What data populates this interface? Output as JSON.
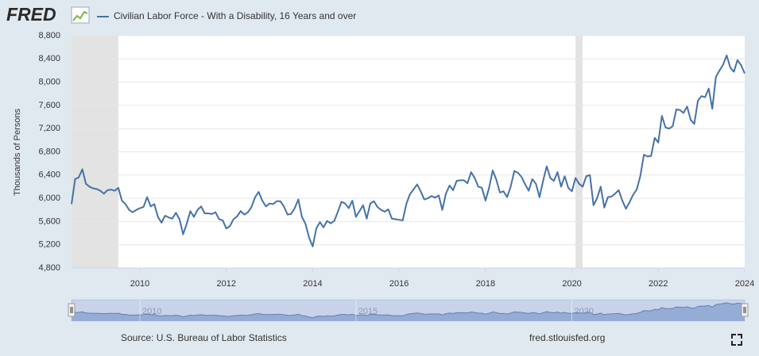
{
  "logo": "FRED",
  "chart_data": {
    "type": "line",
    "y_label": "Thousands of Persons",
    "source": "Source: U.S. Bureau of Labor Statistics",
    "site": "fred.stlouisfed.org",
    "series": [
      {
        "name": "Civilian Labor Force - With a Disability, 16 Years and over",
        "color": "#4572a7",
        "values": [
          5900,
          6330,
          6360,
          6500,
          6250,
          6200,
          6170,
          6160,
          6130,
          6080,
          6140,
          6150,
          6130,
          6180,
          5960,
          5900,
          5800,
          5760,
          5800,
          5830,
          5850,
          6020,
          5860,
          5900,
          5680,
          5580,
          5700,
          5670,
          5650,
          5750,
          5640,
          5380,
          5560,
          5780,
          5680,
          5800,
          5860,
          5740,
          5740,
          5730,
          5760,
          5640,
          5620,
          5480,
          5520,
          5640,
          5690,
          5780,
          5720,
          5760,
          5850,
          6020,
          6110,
          5960,
          5860,
          5910,
          5900,
          5950,
          5950,
          5860,
          5720,
          5730,
          5830,
          5980,
          5680,
          5560,
          5320,
          5170,
          5480,
          5590,
          5500,
          5610,
          5570,
          5610,
          5770,
          5940,
          5910,
          5830,
          5960,
          5680,
          5780,
          5880,
          5650,
          5910,
          5950,
          5850,
          5800,
          5770,
          5810,
          5650,
          5640,
          5630,
          5620,
          5900,
          6070,
          6150,
          6240,
          6120,
          5980,
          6000,
          6040,
          6010,
          6050,
          5800,
          6080,
          6220,
          6140,
          6300,
          6310,
          6310,
          6260,
          6450,
          6350,
          6200,
          6180,
          5960,
          6180,
          6480,
          6320,
          6100,
          6120,
          6020,
          6200,
          6470,
          6440,
          6370,
          6240,
          6130,
          6330,
          6250,
          6020,
          6300,
          6550,
          6350,
          6300,
          6450,
          6200,
          6380,
          6180,
          6120,
          6350,
          6250,
          6200,
          6380,
          6400,
          5880,
          6000,
          6200,
          5840,
          6020,
          6030,
          6080,
          6140,
          5960,
          5820,
          5930,
          6060,
          6150,
          6380,
          6750,
          6720,
          6730,
          7040,
          6960,
          7420,
          7220,
          7200,
          7240,
          7530,
          7520,
          7470,
          7580,
          7350,
          7280,
          7680,
          7760,
          7740,
          7890,
          7540,
          8090,
          8200,
          8300,
          8460,
          8250,
          8180,
          8380,
          8290,
          8150
        ]
      }
    ],
    "x": [
      2008.417,
      2008.5,
      2008.583,
      2008.667,
      2008.75,
      2008.833,
      2008.917,
      2009,
      2009.083,
      2009.167,
      2009.25,
      2009.333,
      2009.417,
      2009.5,
      2009.583,
      2009.667,
      2009.75,
      2009.833,
      2009.917,
      2010,
      2010.083,
      2010.167,
      2010.25,
      2010.333,
      2010.417,
      2010.5,
      2010.583,
      2010.667,
      2010.75,
      2010.833,
      2010.917,
      2011,
      2011.083,
      2011.167,
      2011.25,
      2011.333,
      2011.417,
      2011.5,
      2011.583,
      2011.667,
      2011.75,
      2011.833,
      2011.917,
      2012,
      2012.083,
      2012.167,
      2012.25,
      2012.333,
      2012.417,
      2012.5,
      2012.583,
      2012.667,
      2012.75,
      2012.833,
      2012.917,
      2013,
      2013.083,
      2013.167,
      2013.25,
      2013.333,
      2013.417,
      2013.5,
      2013.583,
      2013.667,
      2013.75,
      2013.833,
      2013.917,
      2014,
      2014.083,
      2014.167,
      2014.25,
      2014.333,
      2014.417,
      2014.5,
      2014.583,
      2014.667,
      2014.75,
      2014.833,
      2014.917,
      2015,
      2015.083,
      2015.167,
      2015.25,
      2015.333,
      2015.417,
      2015.5,
      2015.583,
      2015.667,
      2015.75,
      2015.833,
      2015.917,
      2016,
      2016.083,
      2016.167,
      2016.25,
      2016.333,
      2016.417,
      2016.5,
      2016.583,
      2016.667,
      2016.75,
      2016.833,
      2016.917,
      2017,
      2017.083,
      2017.167,
      2017.25,
      2017.333,
      2017.417,
      2017.5,
      2017.583,
      2017.667,
      2017.75,
      2017.833,
      2017.917,
      2018,
      2018.083,
      2018.167,
      2018.25,
      2018.333,
      2018.417,
      2018.5,
      2018.583,
      2018.667,
      2018.75,
      2018.833,
      2018.917,
      2019,
      2019.083,
      2019.167,
      2019.25,
      2019.333,
      2019.417,
      2019.5,
      2019.583,
      2019.667,
      2019.75,
      2019.833,
      2019.917,
      2020,
      2020.083,
      2020.167,
      2020.25,
      2020.333,
      2020.417,
      2020.5,
      2020.583,
      2020.667,
      2020.75,
      2020.833,
      2020.917,
      2021,
      2021.083,
      2021.167,
      2021.25,
      2021.333,
      2021.417,
      2021.5,
      2021.583,
      2021.667,
      2021.75,
      2021.833,
      2021.917,
      2022,
      2022.083,
      2022.167,
      2022.25,
      2022.333,
      2022.417,
      2022.5,
      2022.583,
      2022.667,
      2022.75,
      2022.833,
      2022.917,
      2023,
      2023.083,
      2023.167,
      2023.25,
      2023.333,
      2023.417,
      2023.5,
      2023.583,
      2023.667,
      2023.75,
      2023.833,
      2023.917,
      2024
    ],
    "xlim": [
      2008.417,
      2024
    ],
    "xticks": [
      2010,
      2012,
      2014,
      2016,
      2018,
      2020,
      2022,
      2024
    ],
    "ylim": [
      4800,
      8800
    ],
    "yticks": [
      {
        "value": 4800,
        "label": "4,800"
      },
      {
        "value": 5200,
        "label": "5,200"
      },
      {
        "value": 5600,
        "label": "5,600"
      },
      {
        "value": 6000,
        "label": "6,000"
      },
      {
        "value": 6400,
        "label": "6,400"
      },
      {
        "value": 6800,
        "label": "6,800"
      },
      {
        "value": 7200,
        "label": "7,200"
      },
      {
        "value": 7600,
        "label": "7,600"
      },
      {
        "value": 8000,
        "label": "8,000"
      },
      {
        "value": 8400,
        "label": "8,400"
      },
      {
        "value": 8800,
        "label": "8,800"
      }
    ],
    "shaded_ranges": [
      [
        2008.417,
        2009.5
      ],
      [
        2020.083,
        2020.25
      ]
    ],
    "navigator_ticks": [
      2010,
      2015,
      2020
    ],
    "grid": true
  }
}
